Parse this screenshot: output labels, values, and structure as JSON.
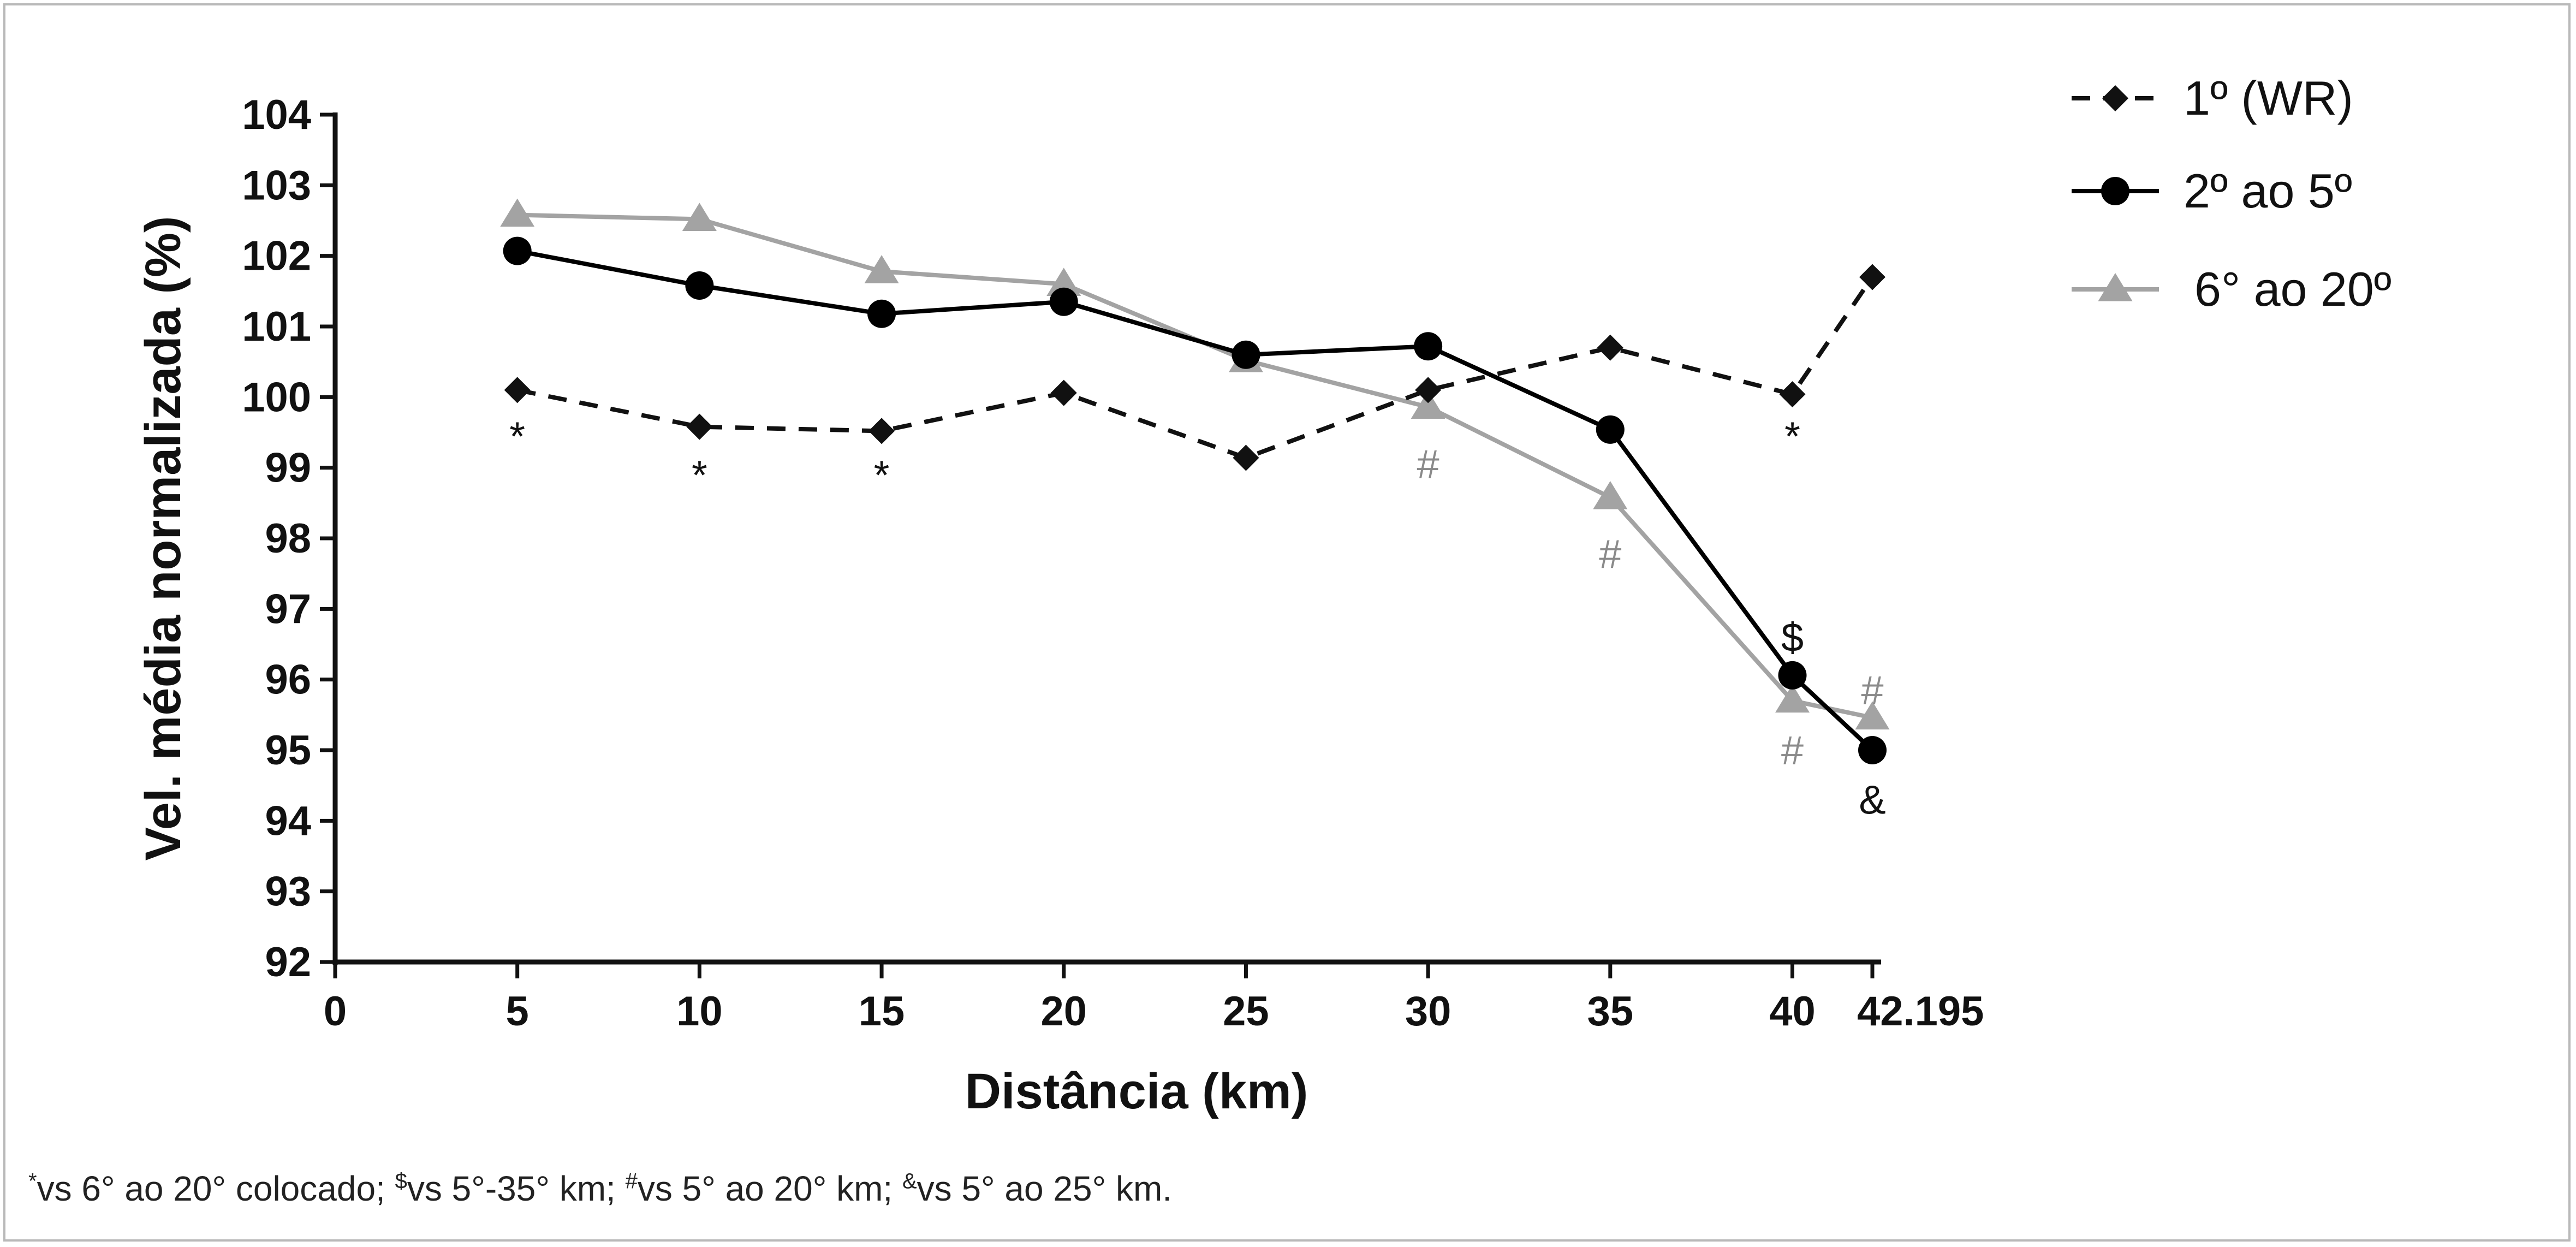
{
  "chart_data": {
    "type": "line",
    "xlabel": "Distância (km)",
    "ylabel": "Vel. média normalizada (%)",
    "xlim": [
      0,
      42.195
    ],
    "ylim": [
      92,
      104
    ],
    "x_ticks": [
      "0",
      "5",
      "10",
      "15",
      "20",
      "25",
      "30",
      "35",
      "40",
      "42.195"
    ],
    "x_tick_values": [
      0,
      5,
      10,
      15,
      20,
      25,
      30,
      35,
      40,
      42.195
    ],
    "y_ticks": [
      "92",
      "93",
      "94",
      "95",
      "96",
      "97",
      "98",
      "99",
      "100",
      "101",
      "102",
      "103",
      "104"
    ],
    "y_tick_values": [
      92,
      93,
      94,
      95,
      96,
      97,
      98,
      99,
      100,
      101,
      102,
      103,
      104
    ],
    "x": [
      5,
      10,
      15,
      20,
      25,
      30,
      35,
      40,
      42.195
    ],
    "series": [
      {
        "name": "1º (WR)",
        "color": "#111111",
        "line_style": "dashed",
        "marker": "diamond",
        "values": [
          100.1,
          99.58,
          99.52,
          100.06,
          99.14,
          100.1,
          100.7,
          100.04,
          101.7
        ]
      },
      {
        "name": "2º ao 5º",
        "color": "#000000",
        "line_style": "solid",
        "marker": "circle",
        "values": [
          102.07,
          101.58,
          101.18,
          101.35,
          100.6,
          100.72,
          99.54,
          96.06,
          95.0
        ]
      },
      {
        "name": "6° ao 20º",
        "color": "#a3a3a3",
        "line_style": "solid",
        "marker": "triangle",
        "values": [
          102.58,
          102.52,
          101.78,
          101.6,
          100.52,
          99.86,
          98.58,
          95.7,
          95.46
        ]
      }
    ],
    "annotations": [
      {
        "text": "*",
        "x": 5,
        "y": 99.45,
        "color": "#111111"
      },
      {
        "text": "*",
        "x": 10,
        "y": 98.9,
        "color": "#111111"
      },
      {
        "text": "*",
        "x": 15,
        "y": 98.9,
        "color": "#111111"
      },
      {
        "text": "#",
        "x": 30,
        "y": 99.05,
        "color": "#8a8a8a"
      },
      {
        "text": "#",
        "x": 35,
        "y": 97.78,
        "color": "#8a8a8a"
      },
      {
        "text": "*",
        "x": 40,
        "y": 99.45,
        "color": "#111111"
      },
      {
        "text": "$",
        "x": 40,
        "y": 96.6,
        "color": "#111111"
      },
      {
        "text": "#",
        "x": 40,
        "y": 95.0,
        "color": "#8a8a8a"
      },
      {
        "text": "#",
        "x": 42.195,
        "y": 95.85,
        "color": "#8a8a8a"
      },
      {
        "text": "&",
        "x": 42.195,
        "y": 94.3,
        "color": "#111111"
      }
    ],
    "legend_position": "top-right",
    "grid": false
  },
  "footnote": {
    "marker1": "*",
    "text1": "vs 6° ao 20° colocado; ",
    "marker2": "$",
    "text2": "vs 5°-35° km; ",
    "marker3": "#",
    "text3": "vs 5° ao 20° km; ",
    "marker4": "&",
    "text4": "vs 5° ao 25° km."
  }
}
